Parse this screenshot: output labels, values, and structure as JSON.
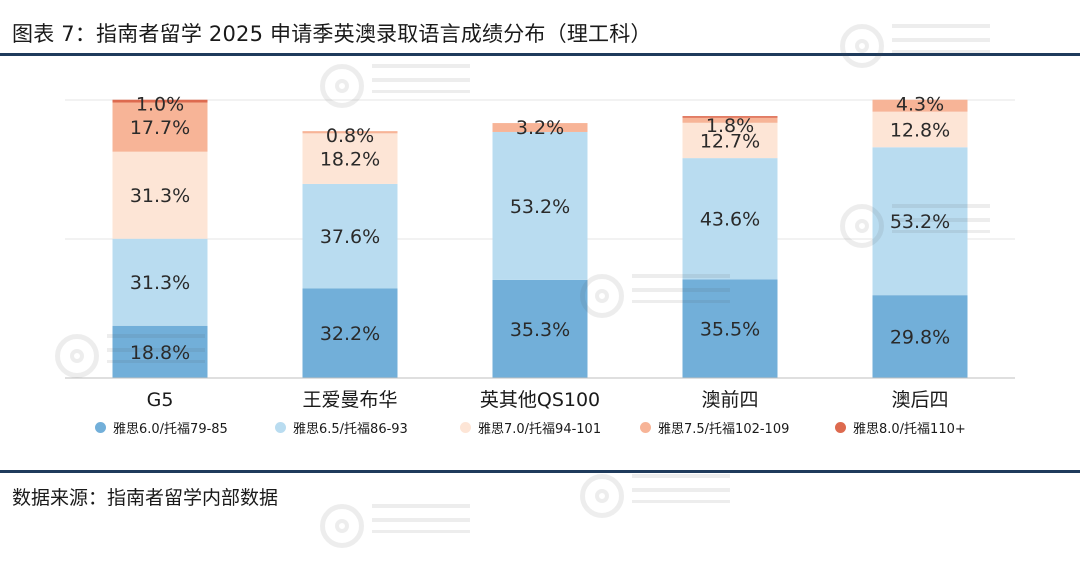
{
  "figure": {
    "title": "图表 7：指南者留学 2025 申请季英澳录取语言成绩分布（理工科）",
    "source": "数据来源：指南者留学内部数据"
  },
  "chart_data": {
    "type": "bar",
    "stacked": true,
    "normalized_percent": true,
    "categories": [
      "G5",
      "王爱曼布华",
      "英其他QS100",
      "澳前四",
      "澳后四"
    ],
    "series": [
      {
        "name": "雅思6.0/托福79-85",
        "color": "#72afd9",
        "values": [
          18.8,
          32.2,
          35.3,
          35.5,
          29.8
        ],
        "labels": [
          "18.8%",
          "32.2%",
          "35.3%",
          "35.5%",
          "29.8%"
        ]
      },
      {
        "name": "雅思6.5/托福86-93",
        "color": "#b9dcf0",
        "values": [
          31.3,
          37.6,
          53.2,
          43.6,
          53.2
        ],
        "labels": [
          "31.3%",
          "37.6%",
          "53.2%",
          "43.6%",
          "53.2%"
        ]
      },
      {
        "name": "雅思7.0/托福94-101",
        "color": "#fde5d6",
        "values": [
          31.3,
          18.2,
          0,
          12.7,
          12.8
        ],
        "labels": [
          "31.3%",
          "18.2%",
          "",
          "12.7%",
          "12.8%"
        ]
      },
      {
        "name": "雅思7.5/托福102-109",
        "color": "#f7b497",
        "values": [
          17.7,
          0.8,
          3.2,
          1.8,
          4.3
        ],
        "labels": [
          "17.7%",
          "0.8%",
          "3.2%",
          "1.8%",
          "4.3%"
        ]
      },
      {
        "name": "雅思8.0/托福110+",
        "color": "#dd6a4f",
        "values": [
          1.0,
          0,
          0,
          0.6,
          0
        ],
        "labels": [
          "1.0%",
          "",
          "",
          "",
          ""
        ]
      }
    ],
    "ylim": [
      0,
      100
    ],
    "grid": true,
    "legend_position": "bottom"
  }
}
